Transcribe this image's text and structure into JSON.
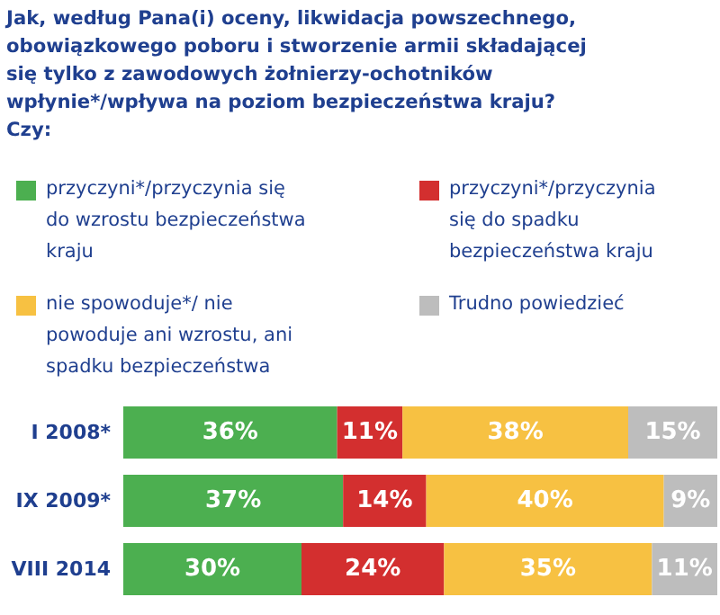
{
  "chart_data": {
    "type": "bar",
    "orientation": "horizontal",
    "stacked": true,
    "title": "Jak, według Pana(i) oceny, likwidacja powszechnego, obowiązkowego poboru i stworzenie armii składającej się tylko z zawodowych żołnierzy-ochotników wpłynie*/wpływa na poziom bezpieczeństwa kraju?",
    "subtitle": "Czy:",
    "legend": "top",
    "categories": [
      "I 2008*",
      "IX 2009*",
      "VIII 2014"
    ],
    "series": [
      {
        "name": "przyczyni*/przyczynia się do wzrostu bezpieczeństwa kraju",
        "color": "#4caf50",
        "values": [
          36,
          37,
          30
        ],
        "value_labels": [
          "36%",
          "37%",
          "30%"
        ]
      },
      {
        "name": "przyczyni*/przyczynia się do spadku bezpieczeństwa kraju",
        "color": "#d32f2f",
        "values": [
          11,
          14,
          24
        ],
        "value_labels": [
          "11%",
          "14%",
          "24%"
        ]
      },
      {
        "name": "nie spowoduje*/ nie powoduje ani wzrostu, ani spadku bezpieczeństwa",
        "color": "#f7c142",
        "values": [
          38,
          40,
          35
        ],
        "value_labels": [
          "38%",
          "40%",
          "35%"
        ]
      },
      {
        "name": "Trudno powiedzieć",
        "color": "#bdbdbd",
        "values": [
          15,
          9,
          11
        ],
        "value_labels": [
          "15%",
          "9%",
          "11%"
        ]
      }
    ]
  }
}
